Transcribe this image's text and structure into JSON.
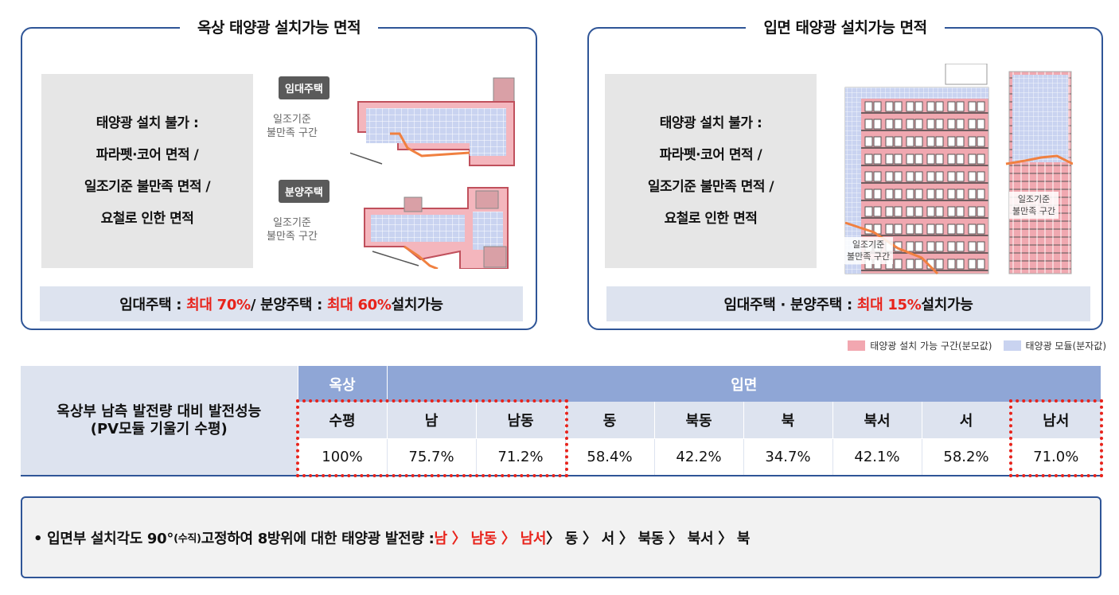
{
  "roof_panel": {
    "title": "옥상 태양광 설치가능 면적",
    "gray_lines": [
      "태양광 설치 불가 :",
      "파라펫·코어 면적 /",
      "일조기준 불만족 면적 /",
      "요철로 인한 면적"
    ],
    "tag_rental": "임대주택",
    "tag_sale": "분양주택",
    "fig_label_1": "일조기준",
    "fig_label_2": "불만족 구간",
    "summary_a": "임대주택 : ",
    "summary_b": "최대 70%",
    "summary_c": " / 분양주택 : ",
    "summary_d": "최대 60%",
    "summary_e": " 설치가능"
  },
  "wall_panel": {
    "title": "입면 태양광 설치가능 면적",
    "gray_lines": [
      "태양광 설치 불가 :",
      "파라펫·코어 면적 /",
      "일조기준 불만족 면적 /",
      "요철로 인한 면적"
    ],
    "fig_label_1": "일조기준",
    "fig_label_2": "불만족 구간",
    "summary_a": "임대주택 · 분양주택 : ",
    "summary_b": "최대 15%",
    "summary_c": " 설치가능"
  },
  "legend": {
    "item_1": "태양광 설치 가능 구간(분모값)",
    "item_2": "태양광 모듈(분자값)",
    "color_1": "#f2a7b0",
    "color_2": "#c9d3f0"
  },
  "table": {
    "row_header_line1": "옥상부 남측 발전량 대비 발전성능",
    "row_header_line2": "(PV모듈 기울기 수평)",
    "group_roof": "옥상",
    "group_wall": "입면",
    "directions": [
      "수평",
      "남",
      "남동",
      "동",
      "북동",
      "북",
      "북서",
      "서",
      "남서"
    ],
    "values": [
      "100%",
      "75.7%",
      "71.2%",
      "58.4%",
      "42.2%",
      "34.7%",
      "42.1%",
      "58.2%",
      "71.0%"
    ]
  },
  "note": {
    "prefix": "• 입면부 설치각도 90°",
    "small": "(수직)",
    "mid": " 고정하여 8방위에 대한 태양광 발전량 : ",
    "red_part": "남 〉 남동 〉 남서",
    "rest": " 〉 동 〉 서 〉 북동 〉 북서 〉 북"
  },
  "colors": {
    "accent_blue": "#2f5597",
    "highlight_red": "#e8231b",
    "header_blue": "#8fa6d6",
    "light_blue": "#dde3ef"
  }
}
